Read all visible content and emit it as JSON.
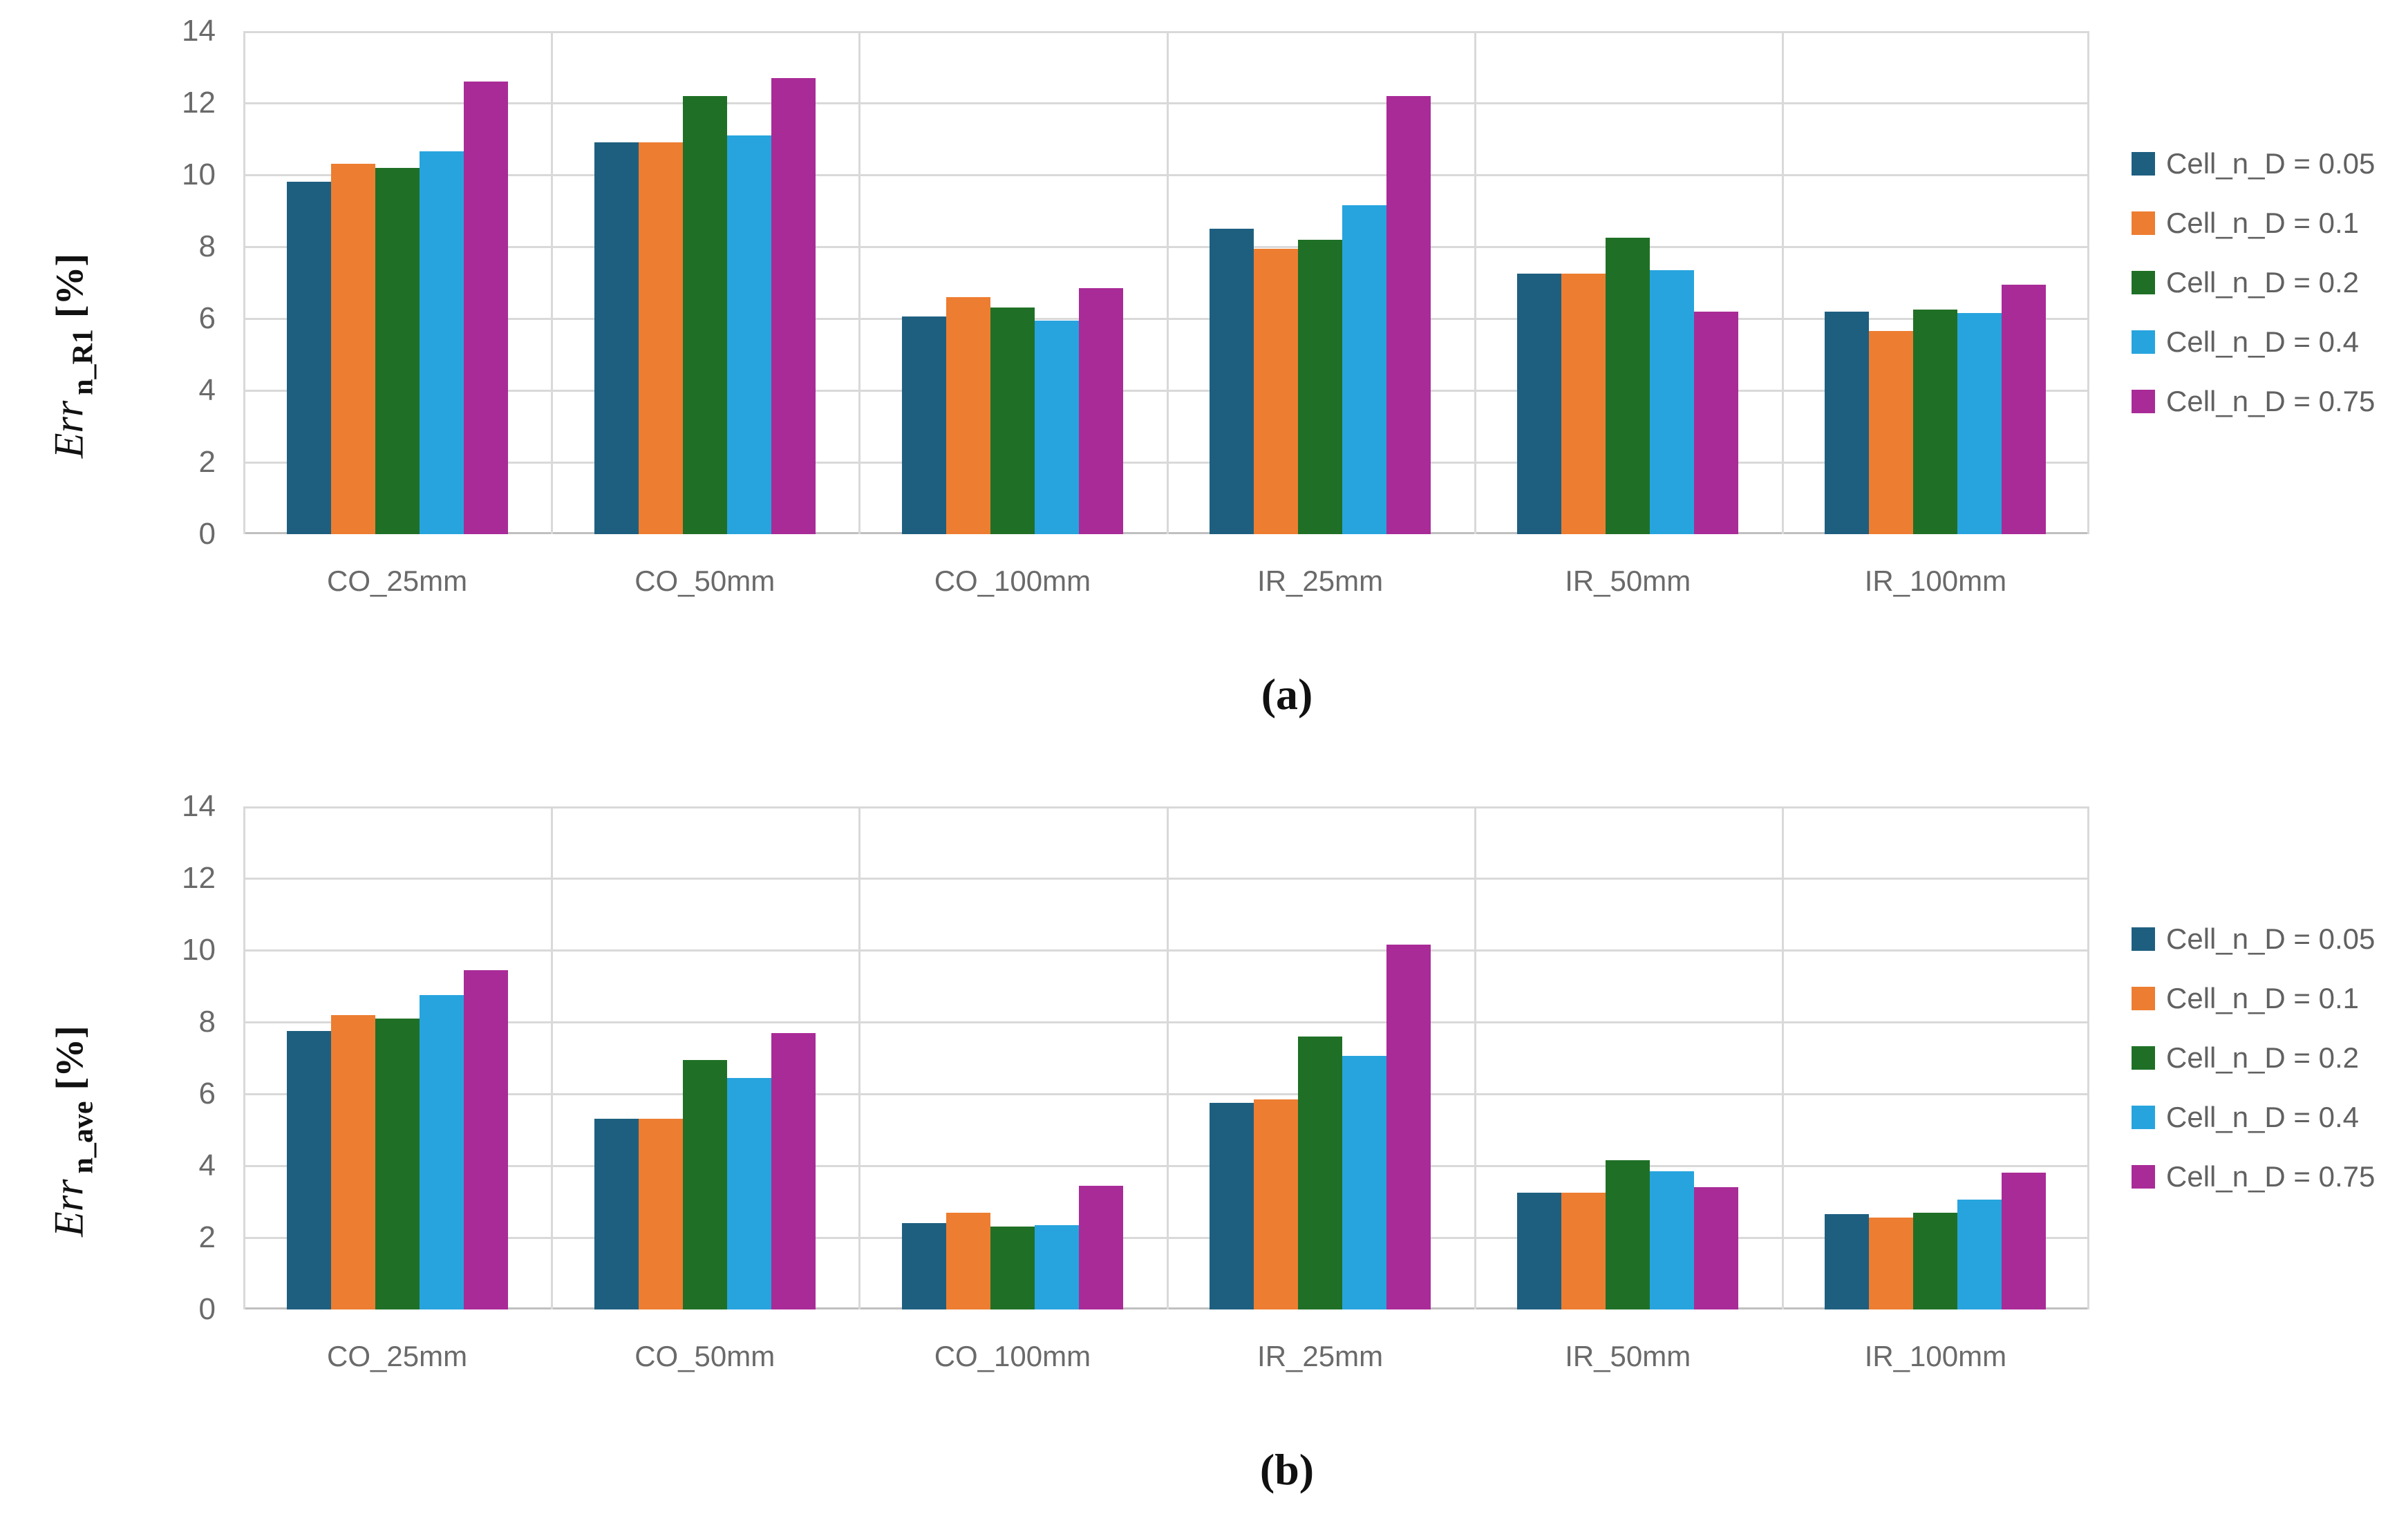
{
  "figure": {
    "background": "#ffffff",
    "grid_color": "#d9d9d9",
    "axis_color": "#bfbfbf",
    "text_color": "#6a6a6a"
  },
  "chart_data": [
    {
      "id": "a",
      "type": "bar",
      "caption": "(a)",
      "ylabel": "Err_n_R1 [%]",
      "ylabel_parts": {
        "main": "Err",
        "subscript": "n_R1",
        "unit": "[%]"
      },
      "ylim": [
        0,
        14
      ],
      "ytick_step": 2,
      "yticks": [
        0,
        2,
        4,
        6,
        8,
        10,
        12,
        14
      ],
      "grid": true,
      "legend_position": "right",
      "categories": [
        "CO_25mm",
        "CO_50mm",
        "CO_100mm",
        "IR_25mm",
        "IR_50mm",
        "IR_100mm"
      ],
      "series": [
        {
          "name": "Cell_n_D = 0.05",
          "color": "#1E5F80",
          "values": [
            9.8,
            10.9,
            6.05,
            8.5,
            7.25,
            6.2
          ]
        },
        {
          "name": "Cell_n_D = 0.1",
          "color": "#ED7D31",
          "values": [
            10.3,
            10.9,
            6.6,
            7.95,
            7.25,
            5.65
          ]
        },
        {
          "name": "Cell_n_D = 0.2",
          "color": "#1F7026",
          "values": [
            10.2,
            12.2,
            6.3,
            8.2,
            8.25,
            6.25
          ]
        },
        {
          "name": "Cell_n_D = 0.4",
          "color": "#27A4DE",
          "values": [
            10.65,
            11.1,
            5.95,
            9.15,
            7.35,
            6.15
          ]
        },
        {
          "name": "Cell_n_D = 0.75",
          "color": "#A92B97",
          "values": [
            12.6,
            12.7,
            6.85,
            12.2,
            6.2,
            6.95
          ]
        }
      ]
    },
    {
      "id": "b",
      "type": "bar",
      "caption": "(b)",
      "ylabel": "Err_n_ave [%]",
      "ylabel_parts": {
        "main": "Err",
        "subscript": "n_ave",
        "unit": "[%]"
      },
      "ylim": [
        0,
        14
      ],
      "ytick_step": 2,
      "yticks": [
        0,
        2,
        4,
        6,
        8,
        10,
        12,
        14
      ],
      "grid": true,
      "legend_position": "right",
      "categories": [
        "CO_25mm",
        "CO_50mm",
        "CO_100mm",
        "IR_25mm",
        "IR_50mm",
        "IR_100mm"
      ],
      "series": [
        {
          "name": "Cell_n_D = 0.05",
          "color": "#1E5F80",
          "values": [
            7.75,
            5.3,
            2.4,
            5.75,
            3.25,
            2.65
          ]
        },
        {
          "name": "Cell_n_D = 0.1",
          "color": "#ED7D31",
          "values": [
            8.2,
            5.3,
            2.7,
            5.85,
            3.25,
            2.55
          ]
        },
        {
          "name": "Cell_n_D = 0.2",
          "color": "#1F7026",
          "values": [
            8.1,
            6.95,
            2.3,
            7.6,
            4.15,
            2.7
          ]
        },
        {
          "name": "Cell_n_D = 0.4",
          "color": "#27A4DE",
          "values": [
            8.75,
            6.45,
            2.35,
            7.05,
            3.85,
            3.05
          ]
        },
        {
          "name": "Cell_n_D = 0.75",
          "color": "#A92B97",
          "values": [
            9.45,
            7.7,
            3.45,
            10.15,
            3.4,
            3.8
          ]
        }
      ]
    }
  ]
}
